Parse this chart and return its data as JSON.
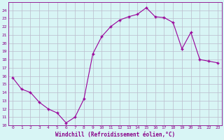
{
  "x": [
    0,
    1,
    2,
    3,
    4,
    5,
    6,
    7,
    8,
    9,
    10,
    11,
    12,
    13,
    14,
    15,
    16,
    17,
    18,
    19,
    20,
    21,
    22,
    23
  ],
  "y": [
    15.8,
    14.4,
    14.0,
    12.8,
    12.0,
    11.5,
    10.3,
    11.0,
    13.2,
    18.7,
    20.8,
    22.0,
    22.8,
    23.2,
    23.5,
    24.3,
    23.2,
    23.1,
    22.5,
    19.3,
    21.3,
    18.0,
    17.8,
    17.6
  ],
  "line_color": "#990099",
  "marker": "+",
  "bg_color": "#d8f5f5",
  "grid_color": "#bbbbcc",
  "xlabel": "Windchill (Refroidissement éolien,°C)",
  "xlim": [
    -0.5,
    23.5
  ],
  "ylim": [
    10,
    25
  ],
  "yticks": [
    10,
    11,
    12,
    13,
    14,
    15,
    16,
    17,
    18,
    19,
    20,
    21,
    22,
    23,
    24
  ],
  "xticks": [
    0,
    1,
    2,
    3,
    4,
    5,
    6,
    7,
    8,
    9,
    10,
    11,
    12,
    13,
    14,
    15,
    16,
    17,
    18,
    19,
    20,
    21,
    22,
    23
  ],
  "tick_label_color": "#880088",
  "label_color": "#880088",
  "spine_color": "#880088",
  "tick_fontsize": 4.5,
  "xlabel_fontsize": 5.5
}
